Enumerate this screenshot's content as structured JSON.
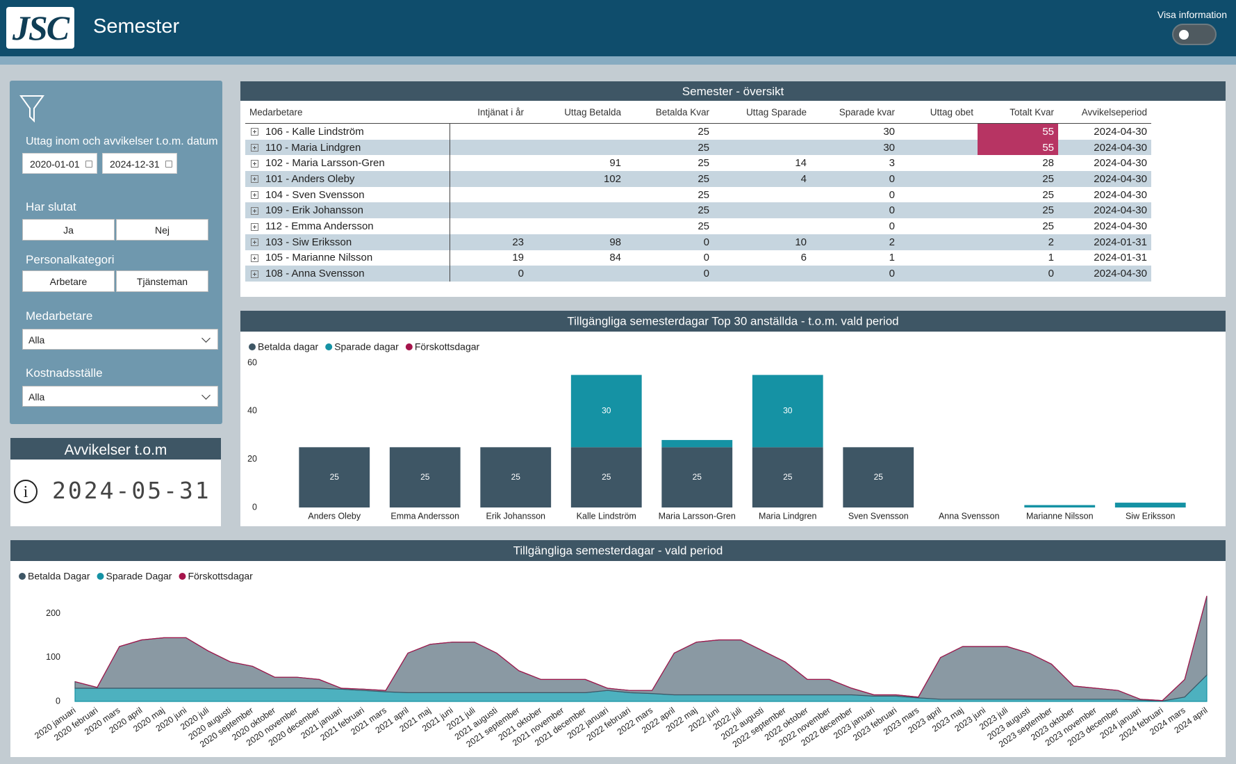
{
  "header": {
    "logo": "JSC",
    "title": "Semester",
    "toggle_label": "Visa information"
  },
  "filters": {
    "date_title": "Uttag inom och avvikelser t.o.m. datum",
    "date_from": "2020-01-01",
    "date_to": "2024-12-31",
    "har_slutat": {
      "label": "Har slutat",
      "options": [
        "Ja",
        "Nej"
      ]
    },
    "personalkategori": {
      "label": "Personalkategori",
      "options": [
        "Arbetare",
        "Tjänsteman"
      ]
    },
    "medarbetare": {
      "label": "Medarbetare",
      "value": "Alla"
    },
    "kostnadsstalle": {
      "label": "Kostnadsställe",
      "value": "Alla"
    }
  },
  "card": {
    "title": "Avvikelser t.o.m",
    "value": "2024-05-31"
  },
  "table": {
    "title": "Semester - översikt",
    "columns": [
      "Medarbetare",
      "Intjänat i år",
      "Uttag Betalda",
      "Betalda Kvar",
      "Uttag Sparade",
      "Sparade kvar",
      "Uttag obet",
      "Totalt Kvar",
      "Avvikelseperiod"
    ],
    "rows": [
      [
        "106 - Kalle Lindström",
        null,
        null,
        25,
        null,
        30,
        null,
        55,
        "2024-04-30"
      ],
      [
        "110 - Maria Lindgren",
        null,
        null,
        25,
        null,
        30,
        null,
        55,
        "2024-04-30"
      ],
      [
        "102 - Maria Larsson-Gren",
        null,
        91,
        25,
        14,
        3,
        null,
        28,
        "2024-04-30"
      ],
      [
        "101 - Anders Oleby",
        null,
        102,
        25,
        4,
        0,
        null,
        25,
        "2024-04-30"
      ],
      [
        "104 - Sven Svensson",
        null,
        null,
        25,
        null,
        0,
        null,
        25,
        "2024-04-30"
      ],
      [
        "109 - Erik Johansson",
        null,
        null,
        25,
        null,
        0,
        null,
        25,
        "2024-04-30"
      ],
      [
        "112 - Emma Andersson",
        null,
        null,
        25,
        null,
        0,
        null,
        25,
        "2024-04-30"
      ],
      [
        "103 - Siw Eriksson",
        23,
        98,
        0,
        10,
        2,
        null,
        2,
        "2024-01-31"
      ],
      [
        "105 - Marianne Nilsson",
        19,
        84,
        0,
        6,
        1,
        null,
        1,
        "2024-01-31"
      ],
      [
        "108 - Anna Svensson",
        0,
        null,
        0,
        null,
        0,
        null,
        0,
        "2024-04-30"
      ]
    ]
  },
  "chart_data": [
    {
      "type": "bar",
      "stacked": true,
      "title": "Tillgängliga semesterdagar Top 30 anställda - t.o.m. vald period",
      "categories": [
        "Anders Oleby",
        "Emma Andersson",
        "Erik Johansson",
        "Kalle Lindström",
        "Maria Larsson-Gren",
        "Maria Lindgren",
        "Sven Svensson",
        "Anna Svensson",
        "Marianne Nilsson",
        "Siw Eriksson"
      ],
      "series": [
        {
          "name": "Betalda dagar",
          "color": "#3e5665",
          "values": [
            25,
            25,
            25,
            25,
            25,
            25,
            25,
            0,
            0,
            0
          ]
        },
        {
          "name": "Sparade dagar",
          "color": "#1592a4",
          "values": [
            0,
            0,
            0,
            30,
            3,
            30,
            0,
            0,
            1,
            2
          ]
        },
        {
          "name": "Förskottsdagar",
          "color": "#a5144b",
          "values": [
            0,
            0,
            0,
            0,
            0,
            0,
            0,
            0,
            0,
            0
          ]
        }
      ],
      "ylim": [
        0,
        60
      ],
      "yticks": [
        0,
        20,
        40,
        60
      ],
      "grid": false,
      "legend": "top-left"
    },
    {
      "type": "area",
      "stacked": true,
      "title": "Tillgängliga semesterdagar - vald period",
      "categories": [
        "2020 januari",
        "2020 februari",
        "2020 mars",
        "2020 april",
        "2020 maj",
        "2020 juni",
        "2020 juli",
        "2020 augusti",
        "2020 september",
        "2020 oktober",
        "2020 november",
        "2020 december",
        "2021 januari",
        "2021 februari",
        "2021 mars",
        "2021 april",
        "2021 maj",
        "2021 juni",
        "2021 juli",
        "2021 augusti",
        "2021 september",
        "2021 oktober",
        "2021 november",
        "2021 december",
        "2022 januari",
        "2022 februari",
        "2022 mars",
        "2022 april",
        "2022 maj",
        "2022 juni",
        "2022 juli",
        "2022 augusti",
        "2022 september",
        "2022 oktober",
        "2022 november",
        "2022 december",
        "2023 januari",
        "2023 februari",
        "2023 mars",
        "2023 april",
        "2023 maj",
        "2023 juni",
        "2023 juli",
        "2023 augusti",
        "2023 september",
        "2023 oktober",
        "2023 november",
        "2023 december",
        "2024 januari",
        "2024 februari",
        "2024 mars",
        "2024 april"
      ],
      "series": [
        {
          "name": "Betalda Dagar",
          "color": "#3e5665",
          "values": [
            15,
            2,
            95,
            110,
            115,
            115,
            85,
            60,
            50,
            25,
            25,
            20,
            2,
            3,
            3,
            90,
            110,
            115,
            115,
            90,
            50,
            30,
            30,
            30,
            5,
            5,
            7,
            95,
            120,
            125,
            125,
            100,
            75,
            35,
            35,
            15,
            3,
            3,
            2,
            95,
            120,
            120,
            120,
            105,
            80,
            30,
            25,
            20,
            2,
            1,
            40,
            180
          ]
        },
        {
          "name": "Sparade Dagar",
          "color": "#1592a4",
          "values": [
            30,
            30,
            30,
            30,
            30,
            30,
            30,
            30,
            30,
            30,
            30,
            30,
            28,
            25,
            22,
            20,
            20,
            20,
            20,
            20,
            20,
            20,
            20,
            20,
            25,
            20,
            18,
            15,
            15,
            15,
            15,
            15,
            15,
            15,
            15,
            15,
            12,
            12,
            8,
            5,
            5,
            5,
            5,
            5,
            5,
            5,
            5,
            5,
            3,
            1,
            10,
            60
          ]
        },
        {
          "name": "Förskottsdagar",
          "color": "#a5144b",
          "values": [
            0,
            0,
            0,
            0,
            0,
            0,
            0,
            0,
            0,
            0,
            0,
            0,
            0,
            0,
            0,
            0,
            0,
            0,
            0,
            0,
            0,
            0,
            0,
            0,
            0,
            0,
            0,
            0,
            0,
            0,
            0,
            0,
            0,
            0,
            0,
            0,
            0,
            0,
            0,
            0,
            0,
            0,
            0,
            0,
            0,
            0,
            0,
            0,
            0,
            0,
            0,
            0
          ]
        }
      ],
      "ylim": [
        0,
        250
      ],
      "yticks": [
        0,
        100,
        200
      ],
      "grid": false,
      "legend": "top-left"
    }
  ]
}
